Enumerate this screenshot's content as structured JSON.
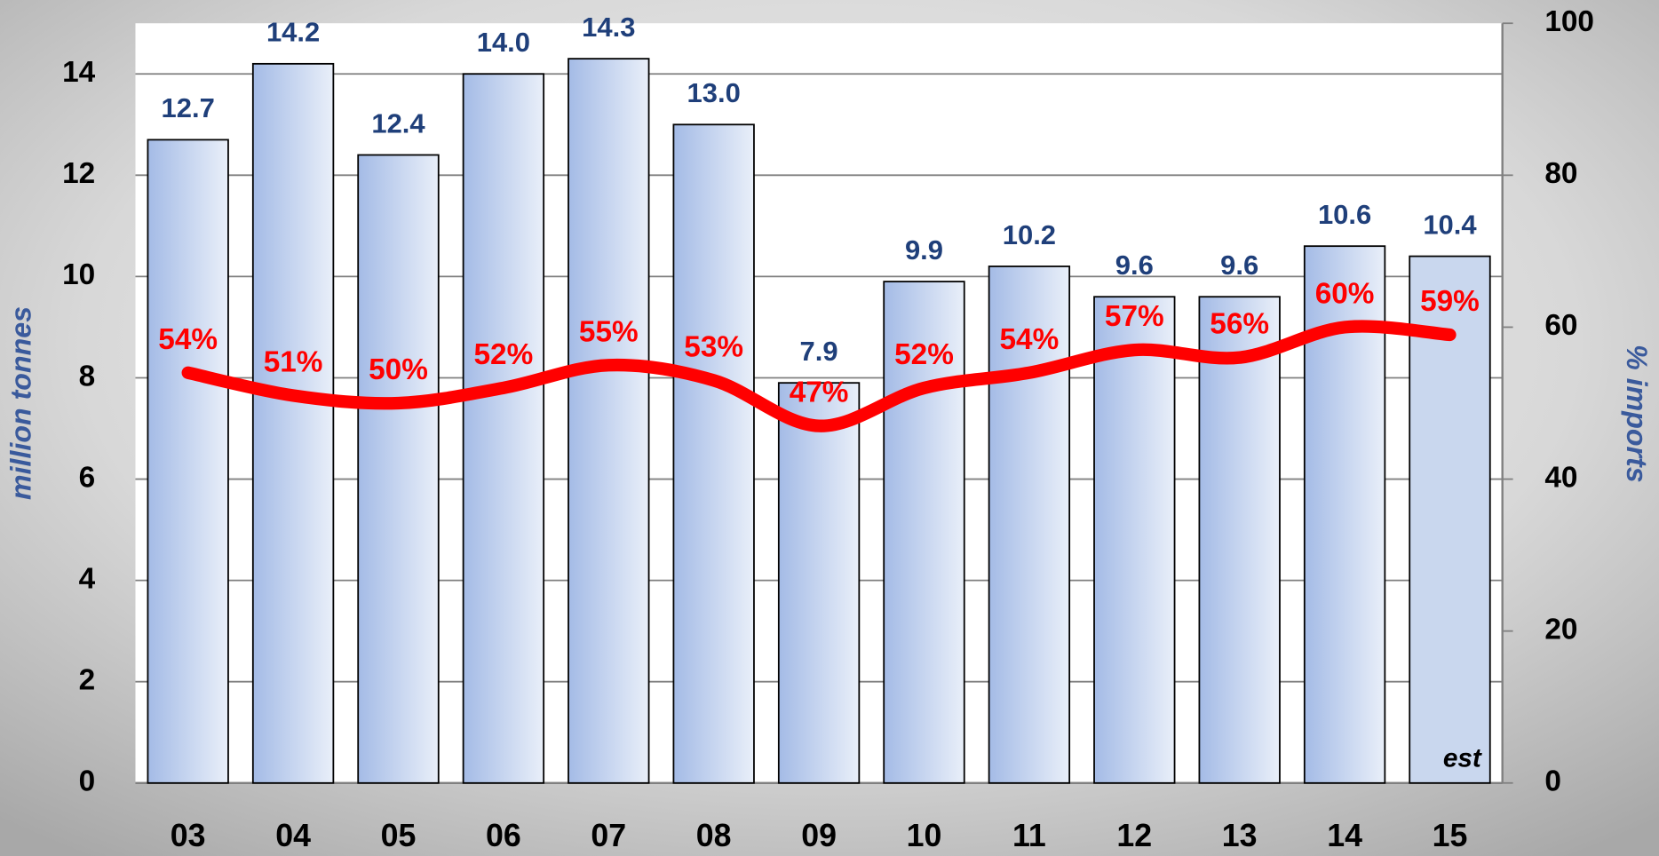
{
  "chart_data": {
    "type": "bar",
    "categories": [
      "03",
      "04",
      "05",
      "06",
      "07",
      "08",
      "09",
      "10",
      "11",
      "12",
      "13",
      "14",
      "15"
    ],
    "series": [
      {
        "name": "million tonnes",
        "type": "bar",
        "color": "#a4bbe6",
        "colors": [
          "#a4bbe6",
          "#a4bbe6",
          "#a4bbe6",
          "#a4bbe6",
          "#a4bbe6",
          "#a4bbe6",
          "#a4bbe6",
          "#a4bbe6",
          "#a4bbe6",
          "#a4bbe6",
          "#a4bbe6",
          "#a4bbe6",
          "#c9d7ee"
        ],
        "values": [
          12.7,
          14.2,
          12.4,
          14.0,
          14.3,
          13.0,
          7.9,
          9.9,
          10.2,
          9.6,
          9.6,
          10.6,
          10.4
        ],
        "value_labels": [
          "12.7",
          "14.2",
          "12.4",
          "14.0",
          "14.3",
          "13.0",
          "7.9",
          "9.9",
          "10.2",
          "9.6",
          "9.6",
          "10.6",
          "10.4"
        ]
      },
      {
        "name": "% imports",
        "type": "line",
        "axis": "y2",
        "color": "#ff0000",
        "values": [
          54,
          51,
          50,
          52,
          55,
          53,
          47,
          52,
          54,
          57,
          56,
          60,
          59
        ],
        "value_labels": [
          "54%",
          "51%",
          "50%",
          "52%",
          "55%",
          "53%",
          "47%",
          "52%",
          "54%",
          "57%",
          "56%",
          "60%",
          "59%"
        ]
      }
    ],
    "y_label": "million tonnes",
    "y2_label": "% imports",
    "annotation": "est",
    "ylim": [
      0,
      15
    ],
    "yticks": [
      0,
      2,
      4,
      6,
      8,
      10,
      12,
      14
    ],
    "y2lim": [
      0,
      100
    ],
    "y2ticks": [
      0,
      20,
      40,
      60,
      80,
      100
    ],
    "grid": true
  }
}
